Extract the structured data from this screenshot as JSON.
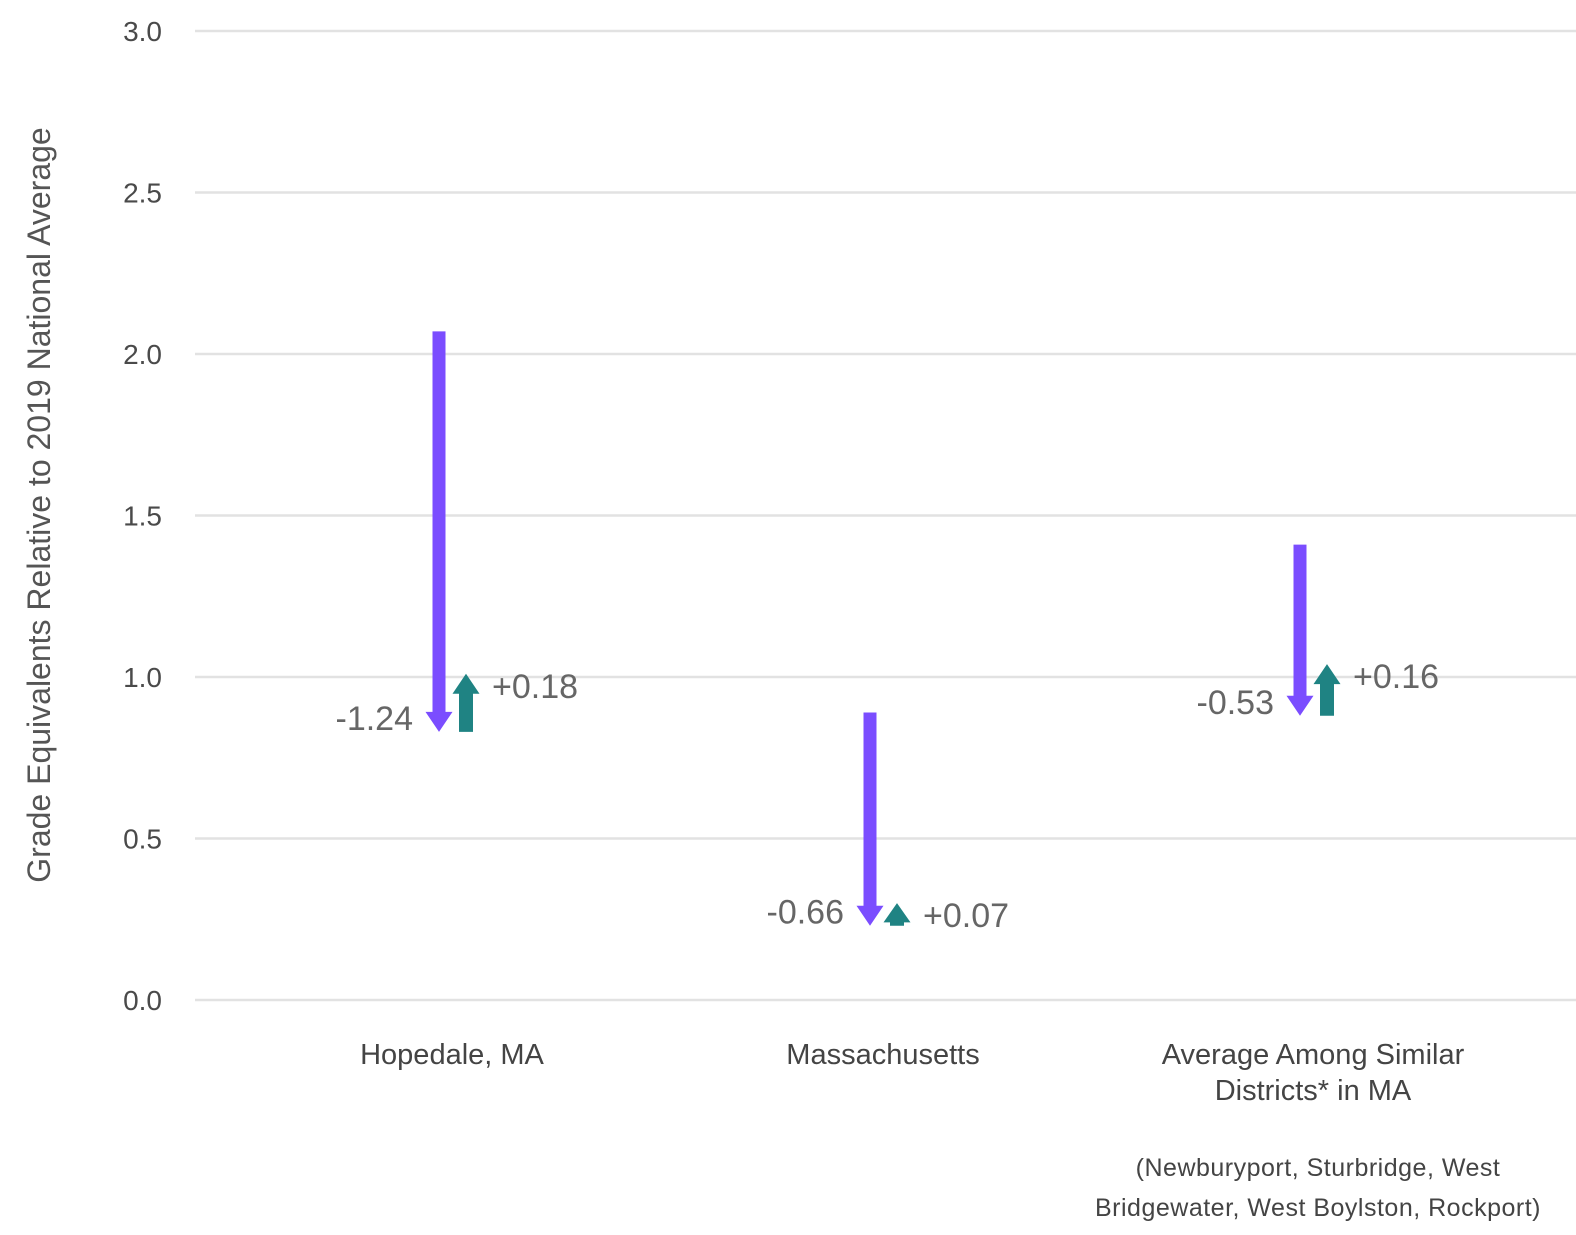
{
  "chart_data": {
    "type": "arrow",
    "ylabel": "Grade Equivalents Relative to 2019 National Average",
    "xlabel": "",
    "ylim": [
      0,
      3
    ],
    "yticks": [
      "0.0",
      "0.5",
      "1.0",
      "1.5",
      "2.0",
      "2.5",
      "3.0"
    ],
    "grid": true,
    "categories": [
      {
        "label_lines": [
          "Hopedale, MA"
        ]
      },
      {
        "label_lines": [
          "Massachusetts"
        ]
      },
      {
        "label_lines": [
          "Average Among Similar",
          "Districts* in MA"
        ]
      }
    ],
    "series": [
      {
        "kind": "decline",
        "color": "#7b4dff",
        "start": [
          2.07,
          0.89,
          1.41
        ],
        "end": [
          0.83,
          0.23,
          0.88
        ],
        "labels": [
          "-1.24",
          "-0.66",
          "-0.53"
        ]
      },
      {
        "kind": "recovery",
        "color": "#1f8383",
        "start": [
          0.83,
          0.23,
          0.88
        ],
        "end": [
          1.01,
          0.3,
          1.04
        ],
        "labels": [
          "+0.18",
          "+0.07",
          "+0.16"
        ]
      }
    ],
    "footnote_lines": [
      "(Newburyport, Sturbridge, West",
      "Bridgewater, West Boylston, Rockport)"
    ]
  }
}
